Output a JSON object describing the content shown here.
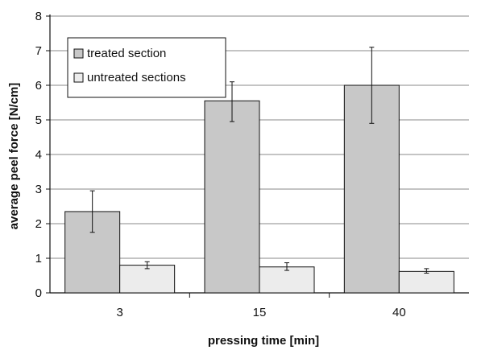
{
  "chart_data": {
    "type": "bar",
    "title": "",
    "xlabel": "pressing time [min]",
    "ylabel": "average peel force [N/cm]",
    "categories": [
      "3",
      "15",
      "40"
    ],
    "ylim": [
      0,
      8
    ],
    "yticks": [
      0,
      1,
      2,
      3,
      4,
      5,
      6,
      7,
      8
    ],
    "grid": "horizontal",
    "legend_position": "top-left",
    "series": [
      {
        "name": "treated section",
        "values": [
          2.35,
          5.55,
          6.0
        ],
        "error_low": [
          1.75,
          4.95,
          4.9
        ],
        "error_high": [
          2.95,
          6.1,
          7.1
        ],
        "color": "#c8c8c8"
      },
      {
        "name": "untreated sections",
        "values": [
          0.8,
          0.75,
          0.62
        ],
        "error_low": [
          0.7,
          0.65,
          0.57
        ],
        "error_high": [
          0.9,
          0.87,
          0.7
        ],
        "color": "#ececec"
      }
    ]
  }
}
